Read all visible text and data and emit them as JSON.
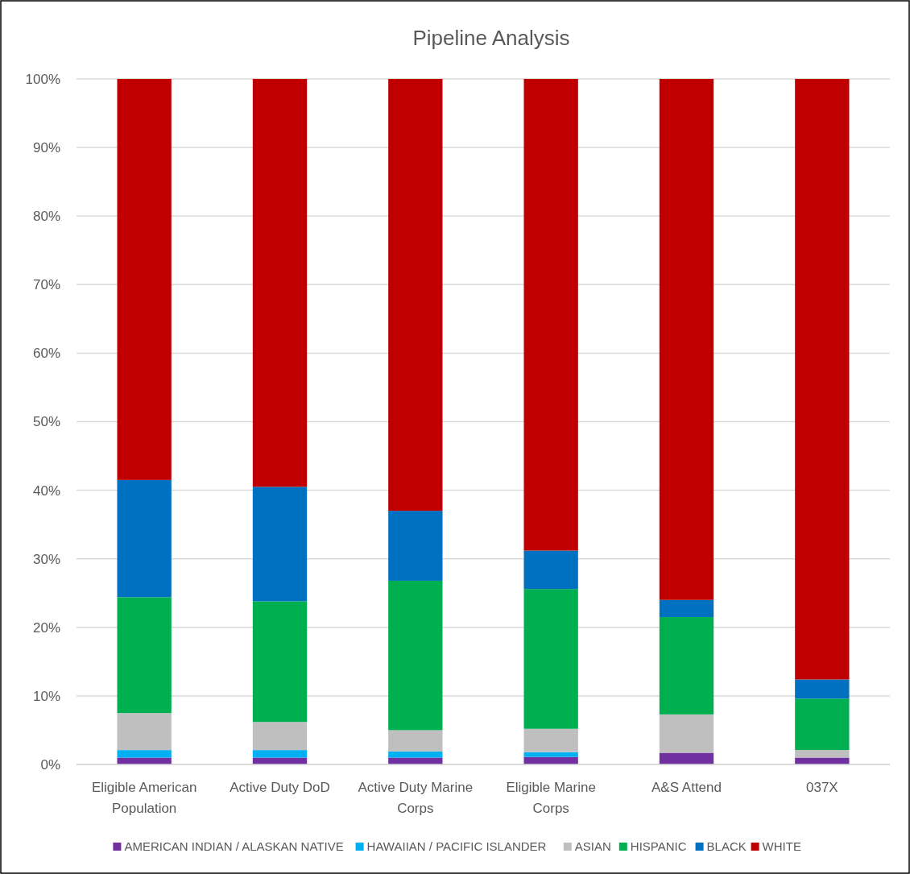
{
  "chart_data": {
    "type": "bar",
    "title": "Pipeline Analysis",
    "stacked": true,
    "categories": [
      "Eligible American Population",
      "Active Duty DoD",
      "Active Duty Marine Corps",
      "Eligible Marine Corps",
      "A&S Attend",
      "037X"
    ],
    "series": [
      {
        "name": "AMERICAN INDIAN / ALASKAN NATIVE",
        "color": "#7030a0",
        "values": [
          1.0,
          1.0,
          1.0,
          1.1,
          1.7,
          1.0
        ]
      },
      {
        "name": "HAWAIIAN / PACIFIC ISLANDER",
        "color": "#00b0f0",
        "values": [
          1.1,
          1.1,
          0.9,
          0.7,
          0,
          0
        ]
      },
      {
        "name": "ASIAN",
        "color": "#bfbfbf",
        "values": [
          5.4,
          4.1,
          3.1,
          3.4,
          5.6,
          1.1
        ]
      },
      {
        "name": "HISPANIC",
        "color": "#00b050",
        "values": [
          16.9,
          17.6,
          21.8,
          20.4,
          14.2,
          7.5
        ]
      },
      {
        "name": "BLACK",
        "color": "#0070c0",
        "values": [
          17.1,
          16.7,
          10.2,
          5.6,
          2.5,
          2.8
        ]
      },
      {
        "name": "WHITE",
        "color": "#c00000",
        "values": [
          58.5,
          59.5,
          63.0,
          68.8,
          76.0,
          87.6
        ]
      }
    ],
    "ylim": [
      0,
      100
    ],
    "yticks": [
      {
        "value": 0,
        "label": "0%"
      },
      {
        "value": 10,
        "label": "10%"
      },
      {
        "value": 20,
        "label": "20%"
      },
      {
        "value": 30,
        "label": "30%"
      },
      {
        "value": 40,
        "label": "40%"
      },
      {
        "value": 50,
        "label": "50%"
      },
      {
        "value": 60,
        "label": "60%"
      },
      {
        "value": 70,
        "label": "70%"
      },
      {
        "value": 80,
        "label": "80%"
      },
      {
        "value": 90,
        "label": "90%"
      },
      {
        "value": 100,
        "label": "100%"
      }
    ],
    "grid": "y",
    "legend": "bottom"
  }
}
